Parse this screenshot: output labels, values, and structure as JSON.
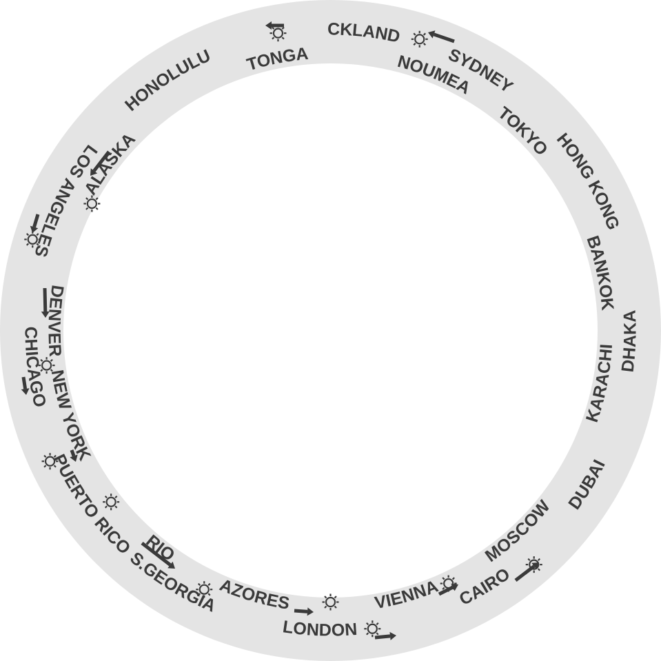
{
  "colors": {
    "ring": "#e4e4e4",
    "ink": "#3a3a3a",
    "background": "#ffffff"
  },
  "cities": [
    {
      "id": "auckland",
      "name": "AUCKLAND",
      "flipped": true,
      "dst": "sun"
    },
    {
      "id": "sydney",
      "name": "SYDNEY",
      "flipped": true,
      "dst": "sun"
    },
    {
      "id": "tokyo",
      "name": "TOKYO",
      "flipped": true,
      "dst": "none"
    },
    {
      "id": "hong-kong",
      "name": "HONG KONG",
      "flipped": true,
      "dst": "none"
    },
    {
      "id": "bankok",
      "name": "BANKOK",
      "flipped": true,
      "dst": "none"
    },
    {
      "id": "dhaka",
      "name": "DHAKA",
      "flipped": false,
      "dst": "none"
    },
    {
      "id": "karachi",
      "name": "KARACHI",
      "flipped": false,
      "dst": "none"
    },
    {
      "id": "dubai",
      "name": "DUBAI",
      "flipped": false,
      "dst": "none"
    },
    {
      "id": "moscow",
      "name": "MOSCOW",
      "flipped": false,
      "dst": "none"
    },
    {
      "id": "cairo",
      "name": "CAIRO",
      "flipped": false,
      "dst": "sun"
    },
    {
      "id": "vienna",
      "name": "VIENNA",
      "flipped": false,
      "dst": "sun"
    },
    {
      "id": "london",
      "name": "LONDON",
      "flipped": false,
      "dst": "sun"
    },
    {
      "id": "azores",
      "name": "AZORES",
      "flipped": false,
      "dst": "sun"
    },
    {
      "id": "s-georgia",
      "name": "S.GEORGIA",
      "flipped": false,
      "dst": "none"
    },
    {
      "id": "rio",
      "name": "RIO",
      "flipped": false,
      "dst": "sun"
    },
    {
      "id": "puerto-rico",
      "name": "PUERTO RICO",
      "flipped": false,
      "dst": "none"
    },
    {
      "id": "new-york",
      "name": "NEW YORK",
      "flipped": false,
      "dst": "sun"
    },
    {
      "id": "chicago",
      "name": "CHICAGO",
      "flipped": false,
      "dst": "sun"
    },
    {
      "id": "denver",
      "name": "DENVER",
      "flipped": false,
      "dst": "sun"
    },
    {
      "id": "los-angeles",
      "name": "LOS ANGELES",
      "flipped": false,
      "dst": "sun"
    },
    {
      "id": "alaska",
      "name": "ALASKA",
      "flipped": true,
      "dst": "sun"
    },
    {
      "id": "honolulu",
      "name": "HONOLULU",
      "flipped": true,
      "dst": "none"
    },
    {
      "id": "tonga",
      "name": "TONGA",
      "flipped": true,
      "dst": "none"
    },
    {
      "id": "noumea",
      "name": "NOUMEA",
      "flipped": true,
      "dst": "none"
    }
  ]
}
